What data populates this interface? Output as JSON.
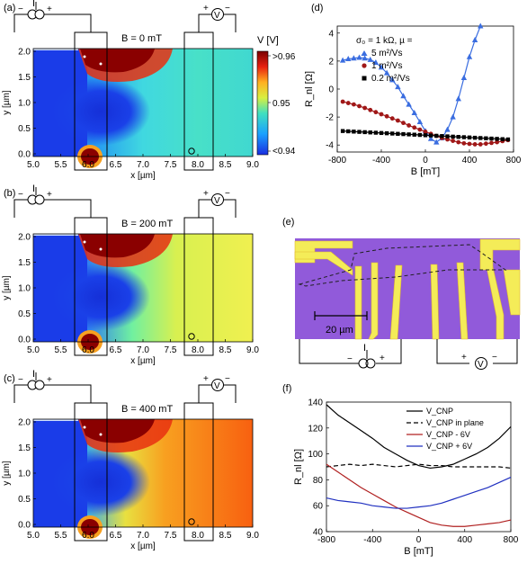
{
  "panels": {
    "a": {
      "label": "(a)",
      "field": "B = 0 mT"
    },
    "b": {
      "label": "(b)",
      "field": "B = 200 mT"
    },
    "c": {
      "label": "(c)",
      "field": "B = 400 mT"
    },
    "d": {
      "label": "(d)"
    },
    "e": {
      "label": "(e)",
      "scalebar": "20 µm",
      "current_label": "I",
      "voltage_label": "V"
    },
    "f": {
      "label": "(f)"
    }
  },
  "map_common": {
    "xlabel": "x [µm]",
    "ylabel": "y [µm]",
    "x_ticks": [
      "5.0",
      "5.5",
      "6.0",
      "6.5",
      "7.0",
      "7.5",
      "8.0",
      "8.5",
      "9.0"
    ],
    "y_ticks": [
      "0.0",
      "0.5",
      "1.0",
      "1.5",
      "2.0"
    ],
    "current_label": "I",
    "voltage_label": "V",
    "plus": "+",
    "minus": "−"
  },
  "colorbar": {
    "title": "V [V]",
    "max_label": ">0.96",
    "mid_label": "0.95",
    "min_label": "<0.94"
  },
  "legend_d_header": "σ₀ = 1 kΩ,  µ =",
  "chart_data": [
    {
      "type": "line",
      "panel": "d",
      "xlabel": "B [mT]",
      "ylabel": "R_nl [Ω]",
      "xlim": [
        -800,
        800
      ],
      "ylim": [
        -4.5,
        4.5
      ],
      "x_ticks": [
        -800,
        -400,
        0,
        400,
        800
      ],
      "y_ticks": [
        -4,
        -2,
        0,
        2,
        4
      ],
      "series": [
        {
          "name": "5 m²/Vs",
          "color": "#3a6de0",
          "marker": "triangle",
          "x": [
            -750,
            -700,
            -650,
            -600,
            -550,
            -500,
            -450,
            -400,
            -350,
            -300,
            -250,
            -200,
            -150,
            -100,
            -50,
            0,
            50,
            100,
            150,
            200,
            250,
            300,
            350,
            400,
            450,
            500
          ],
          "y": [
            2.05,
            2.15,
            2.2,
            2.25,
            2.2,
            2.1,
            1.9,
            1.55,
            1.15,
            0.65,
            0.15,
            -0.5,
            -1.1,
            -1.7,
            -2.35,
            -3.0,
            -3.55,
            -3.8,
            -3.5,
            -2.9,
            -2.0,
            -0.7,
            0.8,
            2.3,
            3.5,
            4.5
          ]
        },
        {
          "name": "1 m²/Vs",
          "color": "#a01818",
          "marker": "circle",
          "x": [
            -750,
            -700,
            -650,
            -600,
            -550,
            -500,
            -450,
            -400,
            -350,
            -300,
            -250,
            -200,
            -150,
            -100,
            -50,
            0,
            50,
            100,
            150,
            200,
            250,
            300,
            350,
            400,
            450,
            500,
            550,
            600,
            650,
            700,
            750
          ],
          "y": [
            -0.9,
            -1.0,
            -1.1,
            -1.22,
            -1.35,
            -1.5,
            -1.65,
            -1.8,
            -1.95,
            -2.1,
            -2.25,
            -2.42,
            -2.6,
            -2.75,
            -2.9,
            -3.05,
            -3.2,
            -3.35,
            -3.5,
            -3.6,
            -3.7,
            -3.8,
            -3.88,
            -3.92,
            -3.95,
            -3.95,
            -3.9,
            -3.85,
            -3.8,
            -3.72,
            -3.65
          ]
        },
        {
          "name": "0.2 m²/Vs",
          "color": "#000000",
          "marker": "square",
          "x": [
            -750,
            -700,
            -650,
            -600,
            -550,
            -500,
            -450,
            -400,
            -350,
            -300,
            -250,
            -200,
            -150,
            -100,
            -50,
            0,
            50,
            100,
            150,
            200,
            250,
            300,
            350,
            400,
            450,
            500,
            550,
            600,
            650,
            700,
            750
          ],
          "y": [
            -3.0,
            -3.02,
            -3.04,
            -3.06,
            -3.08,
            -3.1,
            -3.12,
            -3.14,
            -3.16,
            -3.18,
            -3.2,
            -3.22,
            -3.24,
            -3.26,
            -3.28,
            -3.3,
            -3.32,
            -3.34,
            -3.36,
            -3.38,
            -3.4,
            -3.42,
            -3.44,
            -3.46,
            -3.48,
            -3.5,
            -3.52,
            -3.54,
            -3.56,
            -3.58,
            -3.6
          ]
        }
      ]
    },
    {
      "type": "line",
      "panel": "f",
      "xlabel": "B [mT]",
      "ylabel": "R_nl [Ω]",
      "xlim": [
        -800,
        800
      ],
      "ylim": [
        40,
        140
      ],
      "x_ticks": [
        -800,
        -400,
        0,
        400,
        800
      ],
      "y_ticks": [
        40,
        60,
        80,
        100,
        120,
        140
      ],
      "series": [
        {
          "name": "V_CNP",
          "color": "#000000",
          "dash": "",
          "x": [
            -800,
            -700,
            -600,
            -500,
            -400,
            -300,
            -200,
            -100,
            0,
            100,
            200,
            300,
            400,
            500,
            600,
            700,
            800
          ],
          "y": [
            138,
            130,
            124,
            118,
            112,
            105,
            100,
            95,
            91,
            89,
            90,
            92,
            96,
            100,
            105,
            112,
            121
          ]
        },
        {
          "name": "V_CNP in plane",
          "color": "#000000",
          "dash": "5,3",
          "x": [
            -800,
            -700,
            -600,
            -500,
            -400,
            -300,
            -200,
            -100,
            0,
            100,
            200,
            300,
            400,
            500,
            600,
            700,
            800
          ],
          "y": [
            90,
            91,
            92,
            91,
            92,
            91,
            90,
            91,
            92,
            91,
            91,
            90,
            90,
            90,
            90,
            90,
            89
          ]
        },
        {
          "name": "V_CNP - 6V",
          "color": "#b02020",
          "dash": "",
          "x": [
            -800,
            -700,
            -600,
            -500,
            -400,
            -300,
            -200,
            -100,
            0,
            100,
            200,
            300,
            400,
            500,
            600,
            700,
            800
          ],
          "y": [
            92,
            86,
            80,
            74,
            69,
            64,
            59,
            55,
            51,
            47,
            45,
            44,
            44,
            45,
            46,
            47,
            49
          ]
        },
        {
          "name": "V_CNP + 6V",
          "color": "#2030c0",
          "dash": "",
          "x": [
            -800,
            -700,
            -600,
            -500,
            -400,
            -300,
            -200,
            -100,
            0,
            100,
            200,
            300,
            400,
            500,
            600,
            700,
            800
          ],
          "y": [
            66,
            64,
            63,
            62,
            60,
            59,
            58,
            58,
            59,
            60,
            62,
            65,
            68,
            71,
            74,
            78,
            82
          ]
        }
      ]
    }
  ],
  "colors": {
    "map_low": "#1f3ce0",
    "map_high": "#7a0000",
    "device_bg": "#8050d8",
    "electrode": "#f0ea50"
  }
}
